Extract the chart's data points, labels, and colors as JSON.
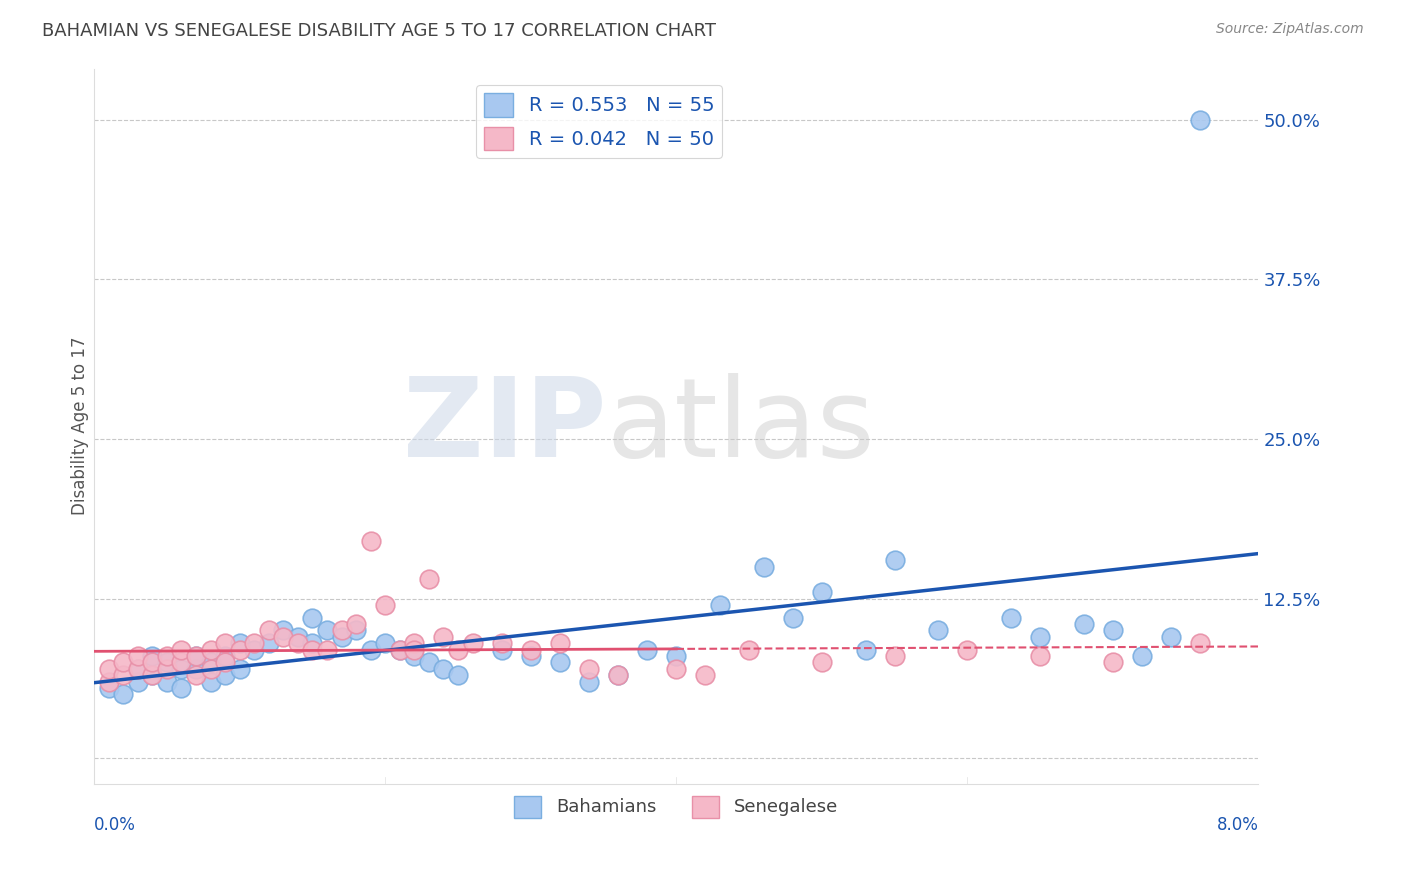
{
  "title": "BAHAMIAN VS SENEGALESE DISABILITY AGE 5 TO 17 CORRELATION CHART",
  "source": "Source: ZipAtlas.com",
  "ylabel": "Disability Age 5 to 17",
  "yticks": [
    0.0,
    0.125,
    0.25,
    0.375,
    0.5
  ],
  "ytick_labels": [
    "",
    "12.5%",
    "25.0%",
    "37.5%",
    "50.0%"
  ],
  "xlim": [
    0.0,
    0.08
  ],
  "ylim": [
    -0.02,
    0.54
  ],
  "r_bahamian": 0.553,
  "n_bahamian": 55,
  "r_senegalese": 0.042,
  "n_senegalese": 50,
  "bahamian_color": "#a8c8f0",
  "bahamian_edge": "#7aaee0",
  "senegalese_color": "#f5b8c8",
  "senegalese_edge": "#e890a8",
  "trend_bahamian_color": "#1b55b0",
  "trend_senegalese_solid_color": "#e05070",
  "trend_senegalese_dash_color": "#e05070",
  "background_color": "#ffffff",
  "grid_color": "#c8c8c8",
  "bahamian_x": [
    0.001,
    0.002,
    0.003,
    0.003,
    0.004,
    0.004,
    0.005,
    0.005,
    0.006,
    0.006,
    0.007,
    0.007,
    0.008,
    0.008,
    0.009,
    0.009,
    0.01,
    0.01,
    0.011,
    0.012,
    0.013,
    0.014,
    0.015,
    0.015,
    0.016,
    0.017,
    0.018,
    0.019,
    0.02,
    0.021,
    0.022,
    0.023,
    0.024,
    0.025,
    0.028,
    0.03,
    0.032,
    0.034,
    0.036,
    0.038,
    0.04,
    0.043,
    0.046,
    0.048,
    0.05,
    0.053,
    0.055,
    0.058,
    0.063,
    0.065,
    0.068,
    0.07,
    0.072,
    0.074,
    0.076
  ],
  "bahamian_y": [
    0.055,
    0.05,
    0.06,
    0.07,
    0.065,
    0.08,
    0.06,
    0.075,
    0.055,
    0.07,
    0.07,
    0.08,
    0.06,
    0.075,
    0.065,
    0.08,
    0.07,
    0.09,
    0.085,
    0.09,
    0.1,
    0.095,
    0.09,
    0.11,
    0.1,
    0.095,
    0.1,
    0.085,
    0.09,
    0.085,
    0.08,
    0.075,
    0.07,
    0.065,
    0.085,
    0.08,
    0.075,
    0.06,
    0.065,
    0.085,
    0.08,
    0.12,
    0.15,
    0.11,
    0.13,
    0.085,
    0.155,
    0.1,
    0.11,
    0.095,
    0.105,
    0.1,
    0.08,
    0.095,
    0.5
  ],
  "senegalese_x": [
    0.001,
    0.001,
    0.002,
    0.002,
    0.003,
    0.003,
    0.004,
    0.004,
    0.005,
    0.005,
    0.006,
    0.006,
    0.007,
    0.007,
    0.008,
    0.008,
    0.009,
    0.009,
    0.01,
    0.011,
    0.012,
    0.013,
    0.014,
    0.015,
    0.016,
    0.017,
    0.018,
    0.019,
    0.02,
    0.021,
    0.022,
    0.022,
    0.023,
    0.024,
    0.025,
    0.026,
    0.028,
    0.03,
    0.032,
    0.034,
    0.036,
    0.04,
    0.042,
    0.045,
    0.05,
    0.055,
    0.06,
    0.065,
    0.07,
    0.076
  ],
  "senegalese_y": [
    0.06,
    0.07,
    0.065,
    0.075,
    0.07,
    0.08,
    0.065,
    0.075,
    0.07,
    0.08,
    0.075,
    0.085,
    0.065,
    0.08,
    0.07,
    0.085,
    0.075,
    0.09,
    0.085,
    0.09,
    0.1,
    0.095,
    0.09,
    0.085,
    0.085,
    0.1,
    0.105,
    0.17,
    0.12,
    0.085,
    0.09,
    0.085,
    0.14,
    0.095,
    0.085,
    0.09,
    0.09,
    0.085,
    0.09,
    0.07,
    0.065,
    0.07,
    0.065,
    0.085,
    0.075,
    0.08,
    0.085,
    0.08,
    0.075,
    0.09
  ],
  "trend_senegalese_solid_end": 0.04
}
